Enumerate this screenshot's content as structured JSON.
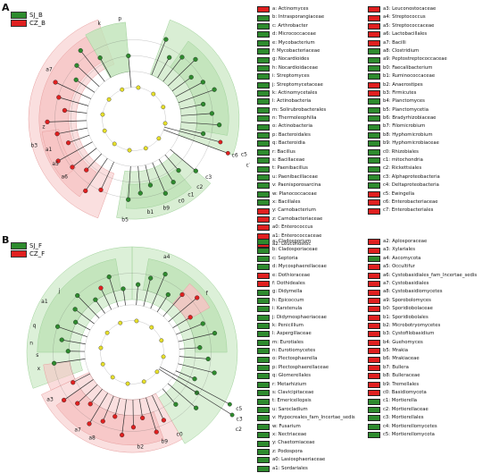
{
  "colors": {
    "green": "#2e8b2e",
    "red": "#e02020",
    "light_green": "#bfe3b8",
    "light_red": "#f6c4c4",
    "node_yellow": "#e6df2a"
  },
  "panel_a": {
    "letter": "A",
    "legend": [
      {
        "label": "SJ_B",
        "color": "green"
      },
      {
        "label": "CZ_B",
        "color": "red"
      }
    ],
    "keys_col1": [
      {
        "t": "a: Actinomyces",
        "c": "red"
      },
      {
        "t": "b: Intrasporangiaceae",
        "c": "green"
      },
      {
        "t": "c: Arthrobacter",
        "c": "green"
      },
      {
        "t": "d: Micrococcaceae",
        "c": "green"
      },
      {
        "t": "e: Mycobacterium",
        "c": "green"
      },
      {
        "t": "f: Mycobacteriaceae",
        "c": "green"
      },
      {
        "t": "g: Nocardioides",
        "c": "green"
      },
      {
        "t": "h: Nocardioidaceae",
        "c": "green"
      },
      {
        "t": "i: Streptomyces",
        "c": "green"
      },
      {
        "t": "j: Streptomycetaceae",
        "c": "green"
      },
      {
        "t": "k: Actinomycetales",
        "c": "green"
      },
      {
        "t": "l: Actinobacteria",
        "c": "green"
      },
      {
        "t": "m: Solirubrobacterales",
        "c": "green"
      },
      {
        "t": "n: Thermoleophilia",
        "c": "green"
      },
      {
        "t": "o: Actinobacteria",
        "c": "green"
      },
      {
        "t": "p: Bacteroidales",
        "c": "green"
      },
      {
        "t": "q: Bacteroidia",
        "c": "green"
      },
      {
        "t": "r: Bacillus",
        "c": "green"
      },
      {
        "t": "s: Bacillaceae",
        "c": "green"
      },
      {
        "t": "t: Paenibacillus",
        "c": "green"
      },
      {
        "t": "u: Paenibacillaceae",
        "c": "green"
      },
      {
        "t": "v: Paenisporosarcina",
        "c": "green"
      },
      {
        "t": "w: Planococcaceae",
        "c": "green"
      },
      {
        "t": "x: Bacillales",
        "c": "green"
      },
      {
        "t": "y: Carnobacterium",
        "c": "red"
      },
      {
        "t": "z: Carnobacteriaceae",
        "c": "red"
      },
      {
        "t": "a0: Enterococcus",
        "c": "red"
      },
      {
        "t": "a1: Enterococcaceae",
        "c": "red"
      },
      {
        "t": "a2: Leuconostoc",
        "c": "red"
      }
    ],
    "keys_col2": [
      {
        "t": "a3: Leuconostocaceae",
        "c": "red"
      },
      {
        "t": "a4: Streptococcus",
        "c": "red"
      },
      {
        "t": "a5: Streptococcaceae",
        "c": "red"
      },
      {
        "t": "a6: Lactobacillales",
        "c": "red"
      },
      {
        "t": "a7: Bacilli",
        "c": "red"
      },
      {
        "t": "a8: Clostridium",
        "c": "green"
      },
      {
        "t": "a9: Peptostreptococcaceae",
        "c": "green"
      },
      {
        "t": "b0: Faecalibacterium",
        "c": "green"
      },
      {
        "t": "b1: Ruminococcaceae",
        "c": "green"
      },
      {
        "t": "b2: Anaerostipes",
        "c": "red"
      },
      {
        "t": "b3: Firmicutes",
        "c": "red"
      },
      {
        "t": "b4: Planctomyces",
        "c": "green"
      },
      {
        "t": "b5: Planctomycetia",
        "c": "green"
      },
      {
        "t": "b6: Bradyrhizobiaceae",
        "c": "green"
      },
      {
        "t": "b7: Filomicrobium",
        "c": "green"
      },
      {
        "t": "b8: Hyphomicrobium",
        "c": "green"
      },
      {
        "t": "b9: Hyphomicrobiaceae",
        "c": "green"
      },
      {
        "t": "c0: Rhizobiales",
        "c": "green"
      },
      {
        "t": "c1: mitochondria",
        "c": "green"
      },
      {
        "t": "c2: Rickettsiales",
        "c": "green"
      },
      {
        "t": "c3: Alphaproteobacteria",
        "c": "green"
      },
      {
        "t": "c4: Deltaproteobacteria",
        "c": "green"
      },
      {
        "t": "c5: Ewingella",
        "c": "red"
      },
      {
        "t": "c6: Enterobacteriaceae",
        "c": "red"
      },
      {
        "t": "c7: Enterobacteriales",
        "c": "red"
      }
    ],
    "sector_labels": [
      "a7",
      "b3",
      "p",
      "k",
      "c3",
      "c2",
      "c1",
      "c0",
      "b9",
      "b1",
      "b5",
      "a6",
      "a5",
      "a1",
      "z",
      "c6",
      "c5",
      "c7"
    ]
  },
  "panel_b": {
    "letter": "B",
    "legend": [
      {
        "label": "SJ_F",
        "color": "green"
      },
      {
        "label": "CZ_F",
        "color": "red"
      }
    ],
    "keys_col1": [
      {
        "t": "a: Cladosporium",
        "c": "green"
      },
      {
        "t": "b: Cladosporiaceae",
        "c": "green"
      },
      {
        "t": "c: Septoria",
        "c": "green"
      },
      {
        "t": "d: Mycosphaerellaceae",
        "c": "green"
      },
      {
        "t": "e: Dothioraceae",
        "c": "red"
      },
      {
        "t": "f: Dothideales",
        "c": "red"
      },
      {
        "t": "g: Didymella",
        "c": "green"
      },
      {
        "t": "h: Epicoccum",
        "c": "green"
      },
      {
        "t": "i: Karstenula",
        "c": "green"
      },
      {
        "t": "j: Didymosphaeriaceae",
        "c": "green"
      },
      {
        "t": "k: Penicillium",
        "c": "green"
      },
      {
        "t": "l: Aspergillaceae",
        "c": "green"
      },
      {
        "t": "m: Eurotiales",
        "c": "green"
      },
      {
        "t": "n: Eurotiomycetes",
        "c": "green"
      },
      {
        "t": "o: Plectosphaerella",
        "c": "green"
      },
      {
        "t": "p: Plectosphaerellaceae",
        "c": "green"
      },
      {
        "t": "q: Glomerellales",
        "c": "green"
      },
      {
        "t": "r: Metarhizium",
        "c": "green"
      },
      {
        "t": "s: Clavicipitaceae",
        "c": "green"
      },
      {
        "t": "t: Emericellopsis",
        "c": "green"
      },
      {
        "t": "u: Sarocladium",
        "c": "green"
      },
      {
        "t": "v: Hypocreales_fam_Incertae_sedis",
        "c": "green"
      },
      {
        "t": "w: Fusarium",
        "c": "green"
      },
      {
        "t": "x: Nectriaceae",
        "c": "green"
      },
      {
        "t": "y: Chaetomiaceae",
        "c": "green"
      },
      {
        "t": "z: Podospora",
        "c": "green"
      },
      {
        "t": "a0: Lasiosphaeriaceae",
        "c": "green"
      },
      {
        "t": "a1: Sordariales",
        "c": "green"
      }
    ],
    "keys_col2": [
      {
        "t": "a2: Aplosporaceae",
        "c": "red"
      },
      {
        "t": "a3: Xylariales",
        "c": "red"
      },
      {
        "t": "a4: Ascomycota",
        "c": "green"
      },
      {
        "t": "a5: Occultifur",
        "c": "red"
      },
      {
        "t": "a6: Cystobasidiales_fam_Incertae_sedis",
        "c": "red"
      },
      {
        "t": "a7: Cystobasidiales",
        "c": "red"
      },
      {
        "t": "a8: Cystobasidiomycetes",
        "c": "red"
      },
      {
        "t": "a9: Sporobolomyces",
        "c": "red"
      },
      {
        "t": "b0: Sporidiobolaceae",
        "c": "red"
      },
      {
        "t": "b1: Sporidiobolales",
        "c": "red"
      },
      {
        "t": "b2: Microbotryomycetes",
        "c": "red"
      },
      {
        "t": "b3: Cystofilobasidium",
        "c": "red"
      },
      {
        "t": "b4: Guehomyces",
        "c": "red"
      },
      {
        "t": "b5: Mrakia",
        "c": "red"
      },
      {
        "t": "b6: Mrakiaceae",
        "c": "red"
      },
      {
        "t": "b7: Bullera",
        "c": "red"
      },
      {
        "t": "b8: Bulleraceae",
        "c": "red"
      },
      {
        "t": "b9: Tremellales",
        "c": "red"
      },
      {
        "t": "c0: Basidiomycota",
        "c": "red"
      },
      {
        "t": "c1: Mortierella",
        "c": "green"
      },
      {
        "t": "c2: Mortierellaceae",
        "c": "green"
      },
      {
        "t": "c3: Mortierellales",
        "c": "green"
      },
      {
        "t": "c4: Mortierellomycetes",
        "c": "green"
      },
      {
        "t": "c5: Mortierellomycota",
        "c": "green"
      }
    ],
    "sector_labels": [
      "a4",
      "a1",
      "q",
      "n",
      "f",
      "c5",
      "c3",
      "c2",
      "c0",
      "b9",
      "b2",
      "a8",
      "a7",
      "a3",
      "x",
      "s",
      "j"
    ]
  }
}
